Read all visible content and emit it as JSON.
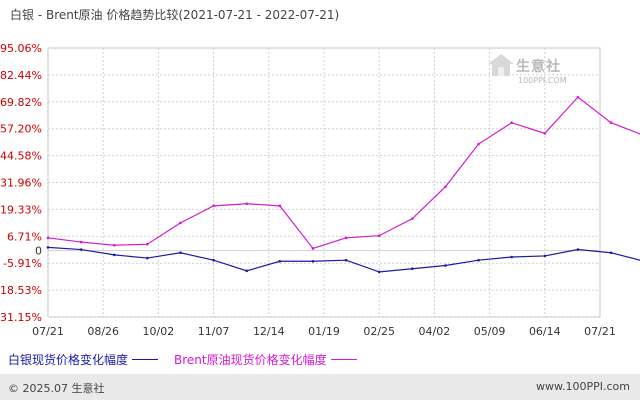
{
  "header": {
    "title": "白银 - Brent原油 价格趋势比较(2021-07-21 - 2022-07-21)"
  },
  "watermark": {
    "text": "生意社",
    "sub": "100PPI.COM"
  },
  "footer": {
    "copyright": "© 2025.07 生意社",
    "site": "www.100PPI.com"
  },
  "colors": {
    "silver": "#1a1aa6",
    "brent": "#d21ad2",
    "ytick": "#cc0000",
    "grid": "#cfcfcf"
  },
  "chart_data": {
    "type": "line",
    "title": "白银 - Brent原油 价格趋势比较(2021-07-21 - 2022-07-21)",
    "xlabel": "",
    "ylabel": "",
    "ylim": [
      -31.15,
      95.06
    ],
    "yticks": [
      95.06,
      82.44,
      69.82,
      57.2,
      44.58,
      31.96,
      19.33,
      6.71,
      0,
      -5.91,
      -18.53,
      -31.15
    ],
    "ytick_labels": [
      "95.06%",
      "82.44%",
      "69.82%",
      "57.20%",
      "44.58%",
      "31.96%",
      "19.33%",
      "6.71%",
      "0",
      "-5.91%",
      "-18.53%",
      "-31.15%"
    ],
    "xticks": [
      "07/21",
      "08/26",
      "10/02",
      "11/07",
      "12/14",
      "01/19",
      "02/25",
      "04/02",
      "05/09",
      "06/14",
      "07/21"
    ],
    "grid": true,
    "legend_position": "bottom",
    "series": [
      {
        "name": "白银现货价格变化幅度",
        "color": "#1a1aa6",
        "x": [
          0,
          0.6,
          1.2,
          1.8,
          2.4,
          3.0,
          3.6,
          4.2,
          4.8,
          5.4,
          6.0,
          6.6,
          7.2,
          7.8,
          8.4,
          9.0,
          9.6,
          10.2,
          10.8
        ],
        "values": [
          1.5,
          0.5,
          -2.0,
          -3.5,
          -1.0,
          -4.5,
          -9.5,
          -5.0,
          -5.0,
          -4.5,
          -10.0,
          -8.5,
          -7.0,
          -4.5,
          -3.0,
          -2.5,
          0.5,
          -1.0,
          -5.0
        ]
      },
      {
        "name": "Brent原油现货价格变化幅度",
        "color": "#d21ad2",
        "x": [
          0,
          0.6,
          1.2,
          1.8,
          2.4,
          3.0,
          3.6,
          4.2,
          4.8,
          5.4,
          6.0,
          6.6,
          7.2,
          7.8,
          8.4,
          9.0,
          9.6,
          10.2,
          10.8
        ],
        "values": [
          6.0,
          4.0,
          2.5,
          3.0,
          13.0,
          21.0,
          22.0,
          21.0,
          1.0,
          6.0,
          7.0,
          15.0,
          30.0,
          50.0,
          60.0,
          55.0,
          72.0,
          60.0,
          54.0
        ]
      }
    ]
  },
  "legend": {
    "silver_label": "白银现货价格变化幅度",
    "brent_label": "Brent原油现货价格变化幅度"
  }
}
